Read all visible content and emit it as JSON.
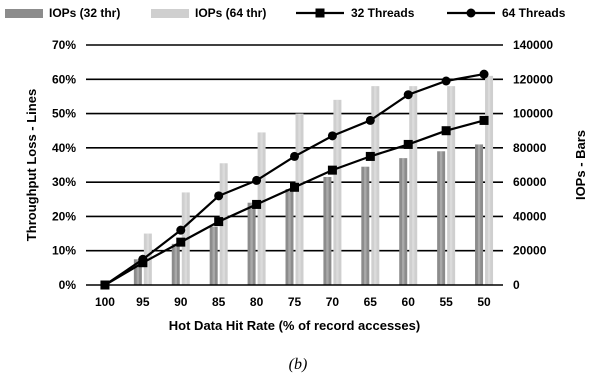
{
  "caption": "(b)",
  "chart_data": {
    "type": "bar",
    "categories": [
      "100",
      "95",
      "90",
      "85",
      "80",
      "75",
      "70",
      "65",
      "60",
      "55",
      "50"
    ],
    "xlabel": "Hot Data Hit Rate (% of record accesses)",
    "y2label": "Throughput Loss - Lines",
    "ylabel": "IOPs - Bars",
    "bar_axis": {
      "ylim": [
        0,
        140000
      ],
      "ticks": [
        "0",
        "20000",
        "40000",
        "60000",
        "80000",
        "100000",
        "120000",
        "140000"
      ],
      "position": "right"
    },
    "line_axis": {
      "ylim": [
        0,
        70
      ],
      "ticks": [
        "0%",
        "10%",
        "20%",
        "30%",
        "40%",
        "50%",
        "60%",
        "70%"
      ],
      "position": "left"
    },
    "grid": "horizontal",
    "legend_position": "top",
    "bar_series": [
      {
        "name": "IOPs (32 thr)",
        "color": "#8c8c8c",
        "values": [
          0,
          15000,
          24000,
          34000,
          48000,
          56000,
          63000,
          69000,
          74000,
          78000,
          82000
        ]
      },
      {
        "name": "IOPs (64 thr)",
        "color": "#cfcfcf",
        "values": [
          0,
          30000,
          54000,
          71000,
          89000,
          100000,
          108000,
          116000,
          116000,
          116000,
          122000
        ]
      }
    ],
    "line_series": [
      {
        "name": "32 Threads",
        "marker": "square",
        "values": [
          0,
          6.5,
          12.5,
          18.5,
          23.5,
          28.5,
          33.5,
          37.5,
          41,
          45,
          48
        ]
      },
      {
        "name": "64 Threads",
        "marker": "circle",
        "values": [
          0,
          7.5,
          16,
          26,
          30.5,
          37.5,
          43.5,
          48,
          55.5,
          59.5,
          61.5
        ]
      }
    ]
  }
}
